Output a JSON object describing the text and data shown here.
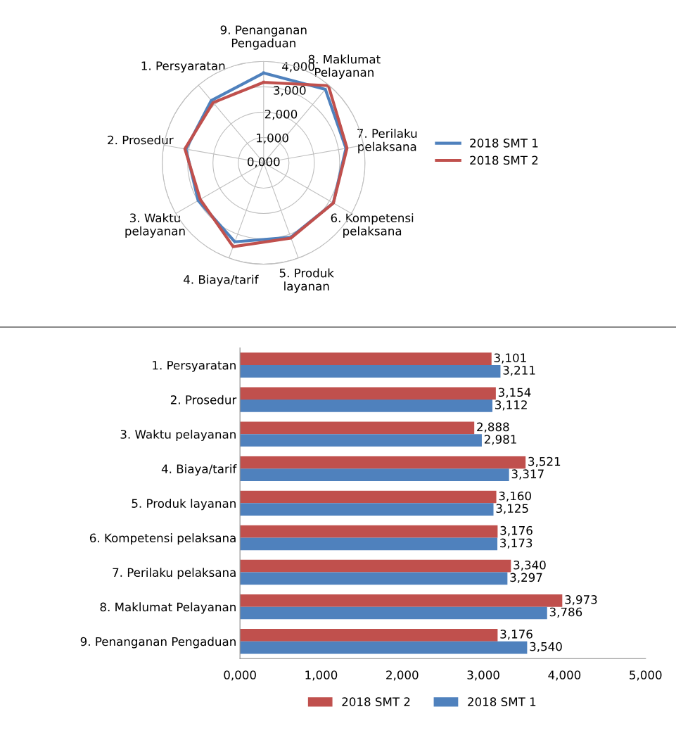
{
  "chart_data": [
    {
      "type": "radar",
      "categories": [
        "9. Penanganan\nPengaduan",
        "8. Maklumat\nPelayanan",
        "7. Perilaku\npelaksana",
        "6. Kompetensi\npelaksana",
        "5. Produk\nlayanan",
        "4. Biaya/tarif",
        "3. Waktu\npelayanan",
        "2. Prosedur",
        "1. Persyaratan"
      ],
      "series": [
        {
          "name": "2018 SMT 1",
          "color": "#4f81bd",
          "values": [
            3.54,
            3.786,
            3.297,
            3.173,
            3.125,
            3.317,
            2.981,
            3.112,
            3.211
          ]
        },
        {
          "name": "2018 SMT 2",
          "color": "#c0504d",
          "values": [
            3.176,
            3.973,
            3.34,
            3.176,
            3.16,
            3.521,
            2.888,
            3.154,
            3.101
          ]
        }
      ],
      "ylim": [
        0,
        4
      ],
      "yticks": [
        {
          "value": 0,
          "label": "0,000"
        },
        {
          "value": 1,
          "label": "1,000"
        },
        {
          "value": 2,
          "label": "2,000"
        },
        {
          "value": 3,
          "label": "3,000"
        },
        {
          "value": 4,
          "label": "4,000"
        }
      ],
      "grid": true,
      "legend": "right"
    },
    {
      "type": "bar",
      "orientation": "horizontal",
      "categories": [
        "1. Persyaratan",
        "2. Prosedur",
        "3. Waktu pelayanan",
        "4. Biaya/tarif",
        "5. Produk layanan",
        "6. Kompetensi pelaksana",
        "7. Perilaku pelaksana",
        "8. Maklumat Pelayanan",
        "9. Penanganan Pengaduan"
      ],
      "series": [
        {
          "name": "2018 SMT 2",
          "color": "#c0504d",
          "values": [
            3.101,
            3.154,
            2.888,
            3.521,
            3.16,
            3.176,
            3.34,
            3.973,
            3.176
          ],
          "value_labels": [
            "3,101",
            "3,154",
            "2,888",
            "3,521",
            "3,160",
            "3,176",
            "3,340",
            "3,973",
            "3,176"
          ]
        },
        {
          "name": "2018 SMT 1",
          "color": "#4f81bd",
          "values": [
            3.211,
            3.112,
            2.981,
            3.317,
            3.125,
            3.173,
            3.297,
            3.786,
            3.54
          ],
          "value_labels": [
            "3,211",
            "3,112",
            "2,981",
            "3,317",
            "3,125",
            "3,173",
            "3,297",
            "3,786",
            "3,540"
          ]
        }
      ],
      "xlim": [
        0,
        5
      ],
      "xticks": [
        {
          "value": 0,
          "label": "0,000"
        },
        {
          "value": 1,
          "label": "1,000"
        },
        {
          "value": 2,
          "label": "2,000"
        },
        {
          "value": 3,
          "label": "3,000"
        },
        {
          "value": 4,
          "label": "4,000"
        },
        {
          "value": 5,
          "label": "5,000"
        }
      ],
      "grid": false,
      "legend": "bottom"
    }
  ]
}
